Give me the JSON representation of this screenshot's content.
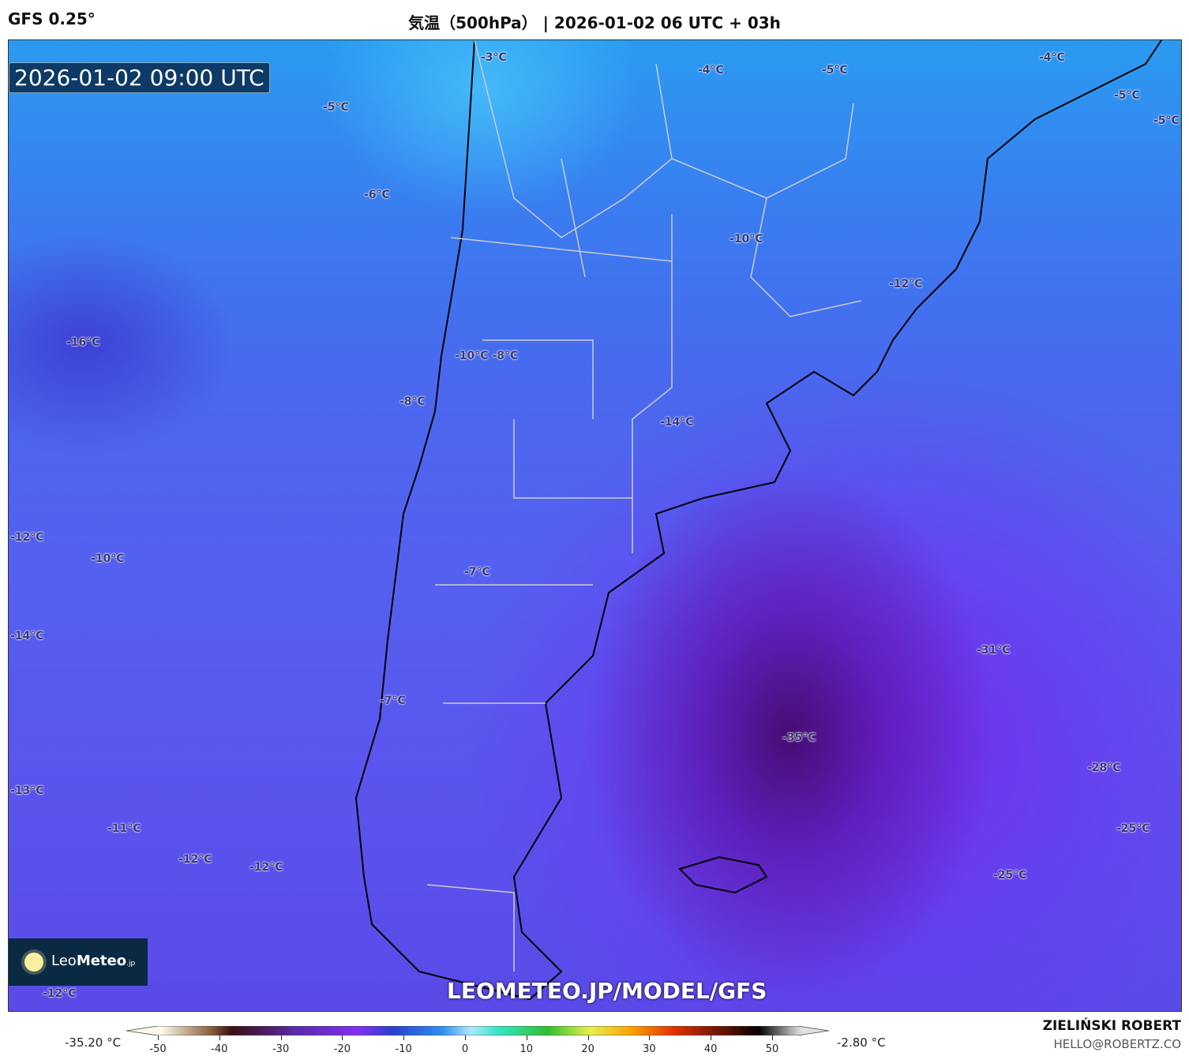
{
  "header": {
    "model": "GFS 0.25°",
    "title": "気温（500hPa） | 2026-01-02 06 UTC + 03h"
  },
  "map": {
    "valid_time": "2026-01-02 09:00 UTC",
    "contour_labels": [
      "-3°C",
      "-4°C",
      "-5°C",
      "-4°C",
      "-5°C",
      "-5°C",
      "-5°C",
      "-6°C",
      "-10°C",
      "-12°C",
      "-16°C",
      "-10°C -8°C",
      "-8°C",
      "-14°C",
      "-12°C",
      "-10°C",
      "-7°C",
      "-14°C",
      "-31°C",
      "-7°C",
      "-35°C",
      "-28°C",
      "-13°C",
      "-11°C",
      "-25°C",
      "-12°C",
      "-12°C",
      "-25°C",
      "-12°C"
    ],
    "watermark": "LEOMETEO.JP/MODEL/GFS",
    "logo": {
      "text_light": "Leo",
      "text_bold": "Meteo",
      "suffix": ".jp"
    }
  },
  "colorbar": {
    "min_label": "-35.20 °C",
    "max_label": "-2.80 °C",
    "ticks": [
      "-50",
      "-40",
      "-30",
      "-20",
      "-10",
      "0",
      "10",
      "20",
      "30",
      "40",
      "50"
    ]
  },
  "credits": {
    "author": "ZIELIŃSKI ROBERT",
    "email": "HELLO@ROBERTZ.CO"
  }
}
